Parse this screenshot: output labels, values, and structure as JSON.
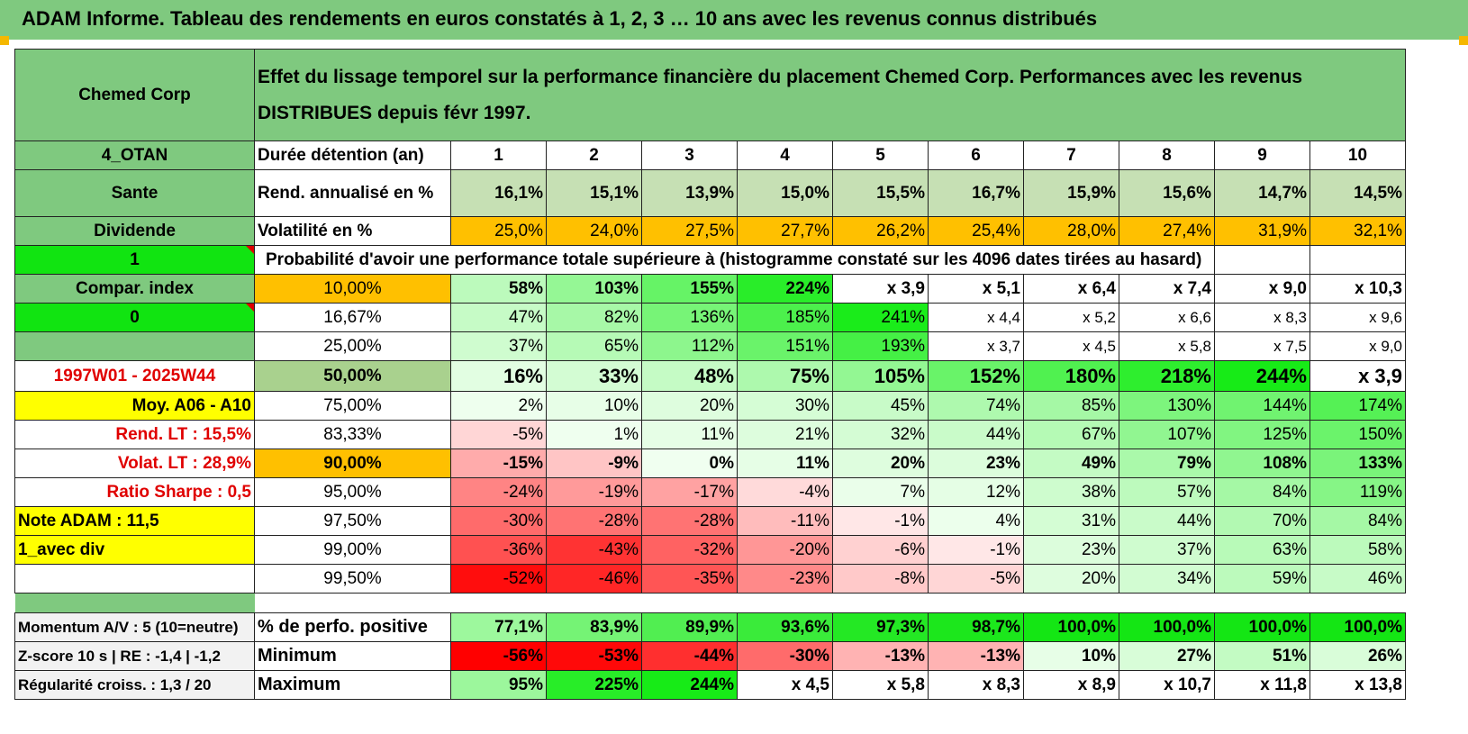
{
  "title": "ADAM Informe. Tableau des rendements en euros constatés à 1, 2, 3 … 10 ans avec les revenus connus distribués",
  "header": {
    "left": "Chemed Corp",
    "description": "Effet du lissage temporel sur la performance financière du placement Chemed Corp. Performances avec les revenus DISTRIBUES depuis févr 1997."
  },
  "rows_top": {
    "code": "4_OTAN",
    "duration_label": "Durée détention (an)",
    "years": [
      "1",
      "2",
      "3",
      "4",
      "5",
      "6",
      "7",
      "8",
      "9",
      "10"
    ],
    "sector": "Sante",
    "rend_label": "Rend. annualisé en %",
    "rend": [
      "16,1%",
      "15,1%",
      "13,9%",
      "15,0%",
      "15,5%",
      "16,7%",
      "15,9%",
      "15,6%",
      "14,7%",
      "14,5%"
    ],
    "type": "Dividende",
    "vol_label": "Volatilité en %",
    "vol": [
      "25,0%",
      "24,0%",
      "27,5%",
      "27,7%",
      "26,2%",
      "25,4%",
      "28,0%",
      "27,4%",
      "31,9%",
      "32,1%"
    ],
    "flag1": "1",
    "proba_label": "Probabilité d'avoir une performance totale supérieure à (histogramme constaté sur les 4096 dates tirées au hasard)"
  },
  "left_labels": [
    "Compar. index",
    "0",
    "",
    "1997W01 - 2025W44",
    "Moy. A06 - A10",
    "Rend. LT :    15,5%",
    "Volat. LT :    28,9%",
    "Ratio Sharpe :    0,5",
    "Note ADAM : 11,5",
    "1_avec div",
    ""
  ],
  "percentiles": [
    "10,00%",
    "16,67%",
    "25,00%",
    "50,00%",
    "75,00%",
    "83,33%",
    "90,00%",
    "95,00%",
    "97,50%",
    "99,00%",
    "99,50%"
  ],
  "matrix": [
    [
      "58%",
      "103%",
      "155%",
      "224%",
      "x 3,9",
      "x 5,1",
      "x 6,4",
      "x 7,4",
      "x 9,0",
      "x 10,3"
    ],
    [
      "47%",
      "82%",
      "136%",
      "185%",
      "241%",
      "x 4,4",
      "x 5,2",
      "x 6,6",
      "x 8,3",
      "x 9,6"
    ],
    [
      "37%",
      "65%",
      "112%",
      "151%",
      "193%",
      "x 3,7",
      "x 4,5",
      "x 5,8",
      "x 7,5",
      "x 9,0"
    ],
    [
      "16%",
      "33%",
      "48%",
      "75%",
      "105%",
      "152%",
      "180%",
      "218%",
      "244%",
      "x 3,9"
    ],
    [
      "2%",
      "10%",
      "20%",
      "30%",
      "45%",
      "74%",
      "85%",
      "130%",
      "144%",
      "174%"
    ],
    [
      "-5%",
      "1%",
      "11%",
      "21%",
      "32%",
      "44%",
      "67%",
      "107%",
      "125%",
      "150%"
    ],
    [
      "-15%",
      "-9%",
      "0%",
      "11%",
      "20%",
      "23%",
      "49%",
      "79%",
      "108%",
      "133%"
    ],
    [
      "-24%",
      "-19%",
      "-17%",
      "-4%",
      "7%",
      "12%",
      "38%",
      "57%",
      "84%",
      "119%"
    ],
    [
      "-30%",
      "-28%",
      "-28%",
      "-11%",
      "-1%",
      "4%",
      "31%",
      "44%",
      "70%",
      "84%"
    ],
    [
      "-36%",
      "-43%",
      "-32%",
      "-20%",
      "-6%",
      "-1%",
      "23%",
      "37%",
      "63%",
      "58%"
    ],
    [
      "-52%",
      "-46%",
      "-35%",
      "-23%",
      "-8%",
      "-5%",
      "20%",
      "34%",
      "59%",
      "46%"
    ]
  ],
  "footer": [
    {
      "left": "Momentum A/V : 5 (10=neutre)",
      "label": "% de perfo. positive",
      "values": [
        "77,1%",
        "83,9%",
        "89,9%",
        "93,6%",
        "97,3%",
        "98,7%",
        "100,0%",
        "100,0%",
        "100,0%",
        "100,0%"
      ]
    },
    {
      "left": "Z-score 10 s | RE : -1,4 | -1,2",
      "label": "Minimum",
      "values": [
        "-56%",
        "-53%",
        "-44%",
        "-30%",
        "-13%",
        "-13%",
        "10%",
        "27%",
        "51%",
        "26%"
      ]
    },
    {
      "left": "Régularité croiss. : 1,3 / 20",
      "label": "Maximum",
      "values": [
        "95%",
        "225%",
        "244%",
        "x 4,5",
        "x 5,8",
        "x 8,3",
        "x 8,9",
        "x 10,7",
        "x 11,8",
        "x 13,8"
      ]
    }
  ],
  "colors": {
    "header_green": "#7fc97f",
    "lime": "#11e411",
    "yellow": "#ffff00",
    "orange": "#ffc000",
    "red_text": "#e00000"
  }
}
